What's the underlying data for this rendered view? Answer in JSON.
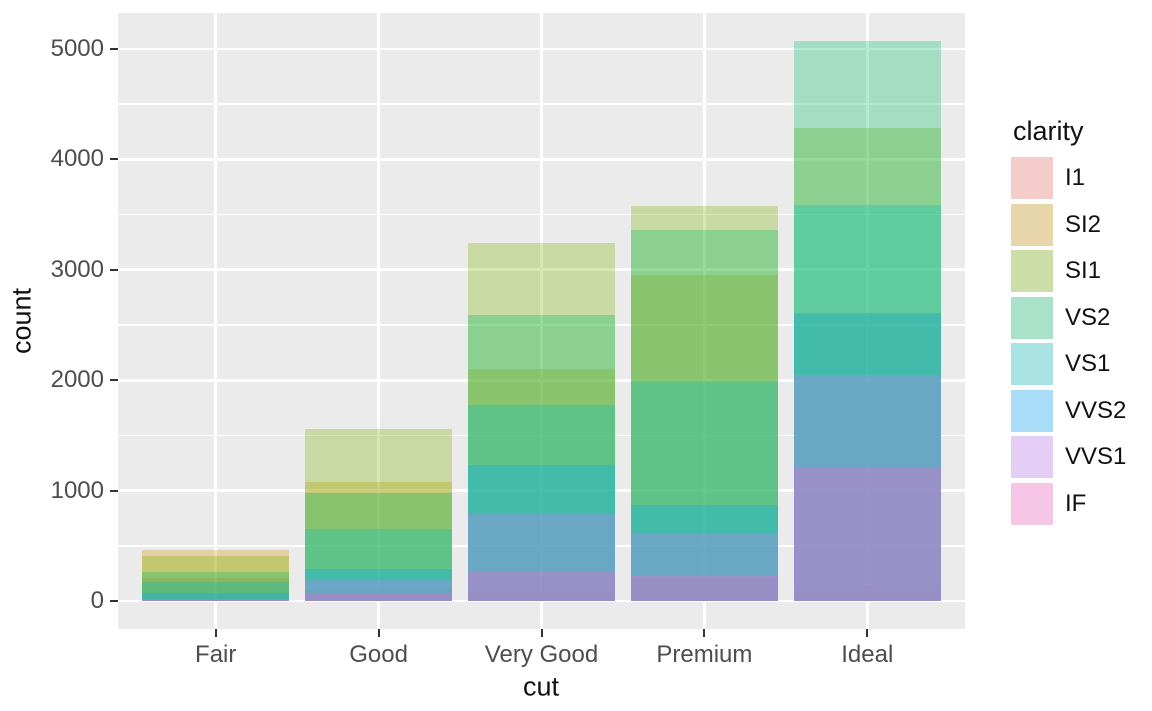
{
  "chart_data": {
    "type": "bar",
    "position": "identity",
    "bar_alpha": 0.3,
    "title": "",
    "xlabel": "cut",
    "ylabel": "count",
    "legend_title": "clarity",
    "legend_position": "right",
    "categories": [
      "Fair",
      "Good",
      "Very Good",
      "Premium",
      "Ideal"
    ],
    "series": [
      {
        "name": "I1",
        "color": "#F8766D",
        "values": [
          210,
          96,
          84,
          205,
          146
        ]
      },
      {
        "name": "SI2",
        "color": "#CD9600",
        "values": [
          466,
          1081,
          2100,
          2949,
          2598
        ]
      },
      {
        "name": "SI1",
        "color": "#7CAE00",
        "values": [
          408,
          1560,
          3240,
          3575,
          4282
        ]
      },
      {
        "name": "VS2",
        "color": "#00BE67",
        "values": [
          261,
          978,
          2591,
          3357,
          5071
        ]
      },
      {
        "name": "VS1",
        "color": "#00BFC4",
        "values": [
          170,
          648,
          1775,
          1989,
          3589
        ]
      },
      {
        "name": "VVS2",
        "color": "#00A9FF",
        "values": [
          69,
          286,
          1235,
          870,
          2606
        ]
      },
      {
        "name": "VVS1",
        "color": "#C77CFF",
        "values": [
          17,
          186,
          789,
          616,
          2047
        ]
      },
      {
        "name": "IF",
        "color": "#FF61CC",
        "values": [
          9,
          71,
          268,
          230,
          1212
        ]
      }
    ],
    "yticks": [
      0,
      1000,
      2000,
      3000,
      4000,
      5000
    ],
    "yticks_minor": [
      500,
      1500,
      2500,
      3500,
      4500
    ],
    "ylim": [
      0,
      5000
    ],
    "grid": true,
    "panel_bg": "#EBEBEB",
    "grid_color": "#FFFFFF",
    "axis_text_color": "#4D4D4D",
    "title_text_color": "#111111",
    "legend_key_bg": "#F2F2F2"
  }
}
